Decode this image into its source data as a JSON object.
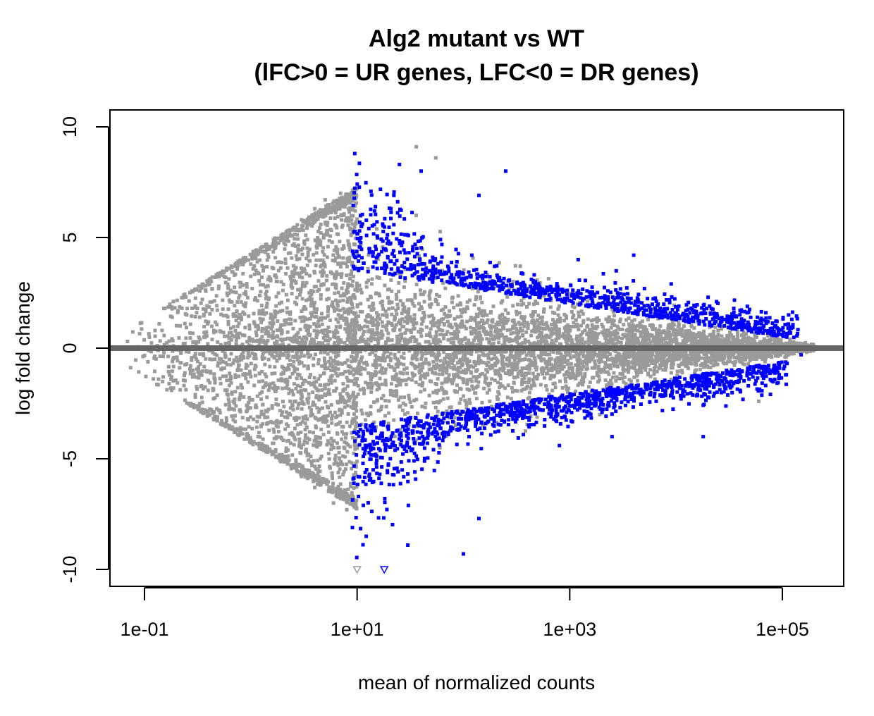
{
  "chart_data": {
    "type": "scatter",
    "title": "Alg2 mutant vs WT",
    "subtitle": "(lFC>0 = UR genes, LFC<0 = DR genes)",
    "xlabel": "mean of normalized counts",
    "ylabel": "log fold change",
    "x_scale": "log10",
    "xlim": [
      0.06,
      250000
    ],
    "ylim": [
      -10.8,
      10.8
    ],
    "x_ticks": [
      {
        "value": 0.1,
        "label": "1e-01"
      },
      {
        "value": 10,
        "label": "1e+01"
      },
      {
        "value": 1000,
        "label": "1e+03"
      },
      {
        "value": 100000,
        "label": "1e+05"
      }
    ],
    "y_ticks": [
      {
        "value": -10,
        "label": "-10"
      },
      {
        "value": -5,
        "label": "-5"
      },
      {
        "value": 0,
        "label": "0"
      },
      {
        "value": 5,
        "label": "5"
      },
      {
        "value": 10,
        "label": "10"
      }
    ],
    "reference_line": {
      "y": 0,
      "color": "#666666"
    },
    "grid": false,
    "legend": "none",
    "colors": {
      "not_significant": "#9a9a9a",
      "significant": "#0000ff"
    },
    "series": [
      {
        "values": [
          [
            0.09,
            0.65
          ],
          [
            0.11,
            0.65
          ],
          [
            0.15,
            -1.3
          ],
          [
            0.18,
            -1.3
          ],
          [
            0.25,
            1.5
          ],
          [
            0.35,
            2.2
          ],
          [
            0.5,
            2.8
          ],
          [
            0.7,
            3.3
          ],
          [
            1.0,
            3.8
          ],
          [
            1.5,
            4.5
          ],
          [
            2.0,
            5.0
          ],
          [
            3.0,
            5.8
          ],
          [
            4.0,
            6.3
          ],
          [
            5.0,
            6.7
          ],
          [
            7.0,
            7.0
          ],
          [
            0.3,
            -2.1
          ],
          [
            0.5,
            -2.8
          ],
          [
            0.8,
            -3.6
          ],
          [
            1.2,
            -4.3
          ],
          [
            2.0,
            -5.0
          ],
          [
            3.0,
            -5.8
          ],
          [
            4.0,
            -6.3
          ],
          [
            6.0,
            -7.0
          ],
          [
            8.0,
            -7.3
          ],
          [
            36,
            9.1
          ],
          [
            55,
            8.6
          ],
          [
            3.5,
            -4.8
          ],
          [
            4.5,
            -5.0
          ],
          [
            65,
            -2.3
          ],
          [
            60000,
            -2.4
          ],
          [
            10,
            -10
          ]
        ]
      },
      {
        "values": [
          [
            25,
            8.3
          ],
          [
            40,
            8.0
          ],
          [
            250,
            8.0
          ],
          [
            140,
            6.9
          ],
          [
            120,
            4.2
          ],
          [
            1200,
            4.0
          ],
          [
            4000,
            4.2
          ],
          [
            9000,
            2.9
          ],
          [
            20000,
            2.3
          ],
          [
            40000,
            1.7
          ],
          [
            70000,
            1.6
          ],
          [
            110000,
            0.5
          ],
          [
            150000,
            -0.3
          ],
          [
            100,
            -9.3
          ],
          [
            140,
            -7.7
          ],
          [
            30,
            -8.9
          ],
          [
            18000,
            -4.0
          ],
          [
            2500,
            -4.0
          ],
          [
            800,
            -4.4
          ],
          [
            18,
            -10
          ]
        ]
      }
    ]
  }
}
